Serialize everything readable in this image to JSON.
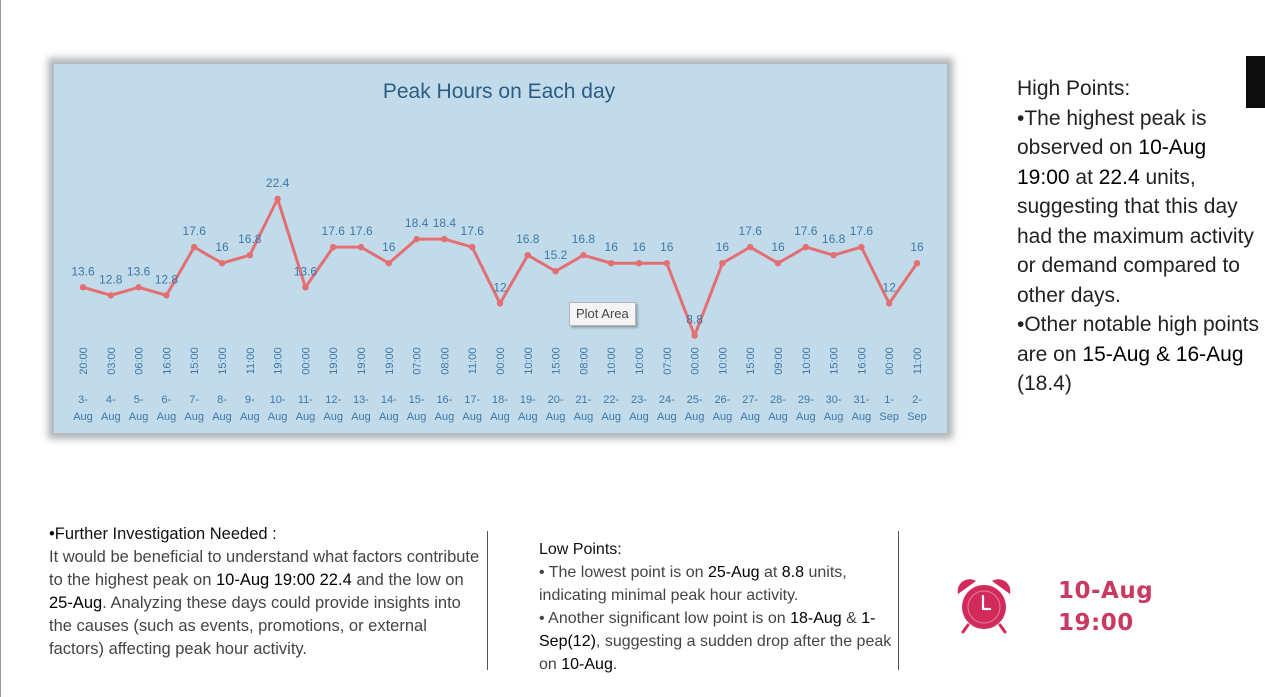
{
  "chart_data": {
    "type": "line",
    "title": "Peak Hours on Each day",
    "categories": [
      {
        "date": "3-Aug",
        "time": "20:00"
      },
      {
        "date": "4-Aug",
        "time": "03:00"
      },
      {
        "date": "5-Aug",
        "time": "06:00"
      },
      {
        "date": "6-Aug",
        "time": "16:00"
      },
      {
        "date": "7-Aug",
        "time": "15:00"
      },
      {
        "date": "8-Aug",
        "time": "15:00"
      },
      {
        "date": "9-Aug",
        "time": "11:00"
      },
      {
        "date": "10-Aug",
        "time": "19:00"
      },
      {
        "date": "11-Aug",
        "time": "00:00"
      },
      {
        "date": "12-Aug",
        "time": "19:00"
      },
      {
        "date": "13-Aug",
        "time": "19:00"
      },
      {
        "date": "14-Aug",
        "time": "19:00"
      },
      {
        "date": "15-Aug",
        "time": "07:00"
      },
      {
        "date": "16-Aug",
        "time": "08:00"
      },
      {
        "date": "17-Aug",
        "time": "11:00"
      },
      {
        "date": "18-Aug",
        "time": "00:00"
      },
      {
        "date": "19-Aug",
        "time": "10:00"
      },
      {
        "date": "20-Aug",
        "time": "15:00"
      },
      {
        "date": "21-Aug",
        "time": "08:00"
      },
      {
        "date": "22-Aug",
        "time": "10:00"
      },
      {
        "date": "23-Aug",
        "time": "10:00"
      },
      {
        "date": "24-Aug",
        "time": "07:00"
      },
      {
        "date": "25-Aug",
        "time": "00:00"
      },
      {
        "date": "26-Aug",
        "time": "10:00"
      },
      {
        "date": "27-Aug",
        "time": "15:00"
      },
      {
        "date": "28-Aug",
        "time": "09:00"
      },
      {
        "date": "29-Aug",
        "time": "10:00"
      },
      {
        "date": "30-Aug",
        "time": "15:00"
      },
      {
        "date": "31-Aug",
        "time": "16:00"
      },
      {
        "date": "1-Sep",
        "time": "00:00"
      },
      {
        "date": "2-Sep",
        "time": "11:00"
      }
    ],
    "values": [
      13.6,
      12.8,
      13.6,
      12.8,
      17.6,
      16,
      16.8,
      22.4,
      13.6,
      17.6,
      17.6,
      16,
      18.4,
      18.4,
      17.6,
      12,
      16.8,
      15.2,
      16.8,
      16,
      16,
      16,
      8.8,
      16,
      17.6,
      16,
      17.6,
      16.8,
      17.6,
      12,
      16
    ],
    "ylim": [
      0,
      30
    ],
    "grid": false,
    "legend": "none",
    "colors": {
      "line": "#e46f72",
      "background": "#c2dbea",
      "labels": "#3c78a8",
      "title": "#2c5c83"
    }
  },
  "tooltip": "Plot Area",
  "high_points": {
    "heading": "High Points:",
    "b1_pre": "•The highest peak is observed on ",
    "b1_date": "10-Aug 19:00",
    "b1_mid": " at ",
    "b1_val": "22.4",
    "b1_post": " units, suggesting that this day had the maximum activity or demand compared to other days.",
    "b2_pre": "•Other notable high points are on ",
    "b2_dates": "15-Aug & 16-Aug",
    "b2_post": " (18.4)"
  },
  "further": {
    "heading": "•Further Investigation Needed :",
    "t1": "It would be beneficial to understand what factors contribute to the highest peak on ",
    "k1": "10-Aug 19:00 22.4",
    "t2": " and the low on ",
    "k2": "25-Aug",
    "t3": ". Analyzing these days could provide insights into the causes (such as events, promotions, or external factors) affecting peak hour activity."
  },
  "low_points": {
    "heading": "Low Points:",
    "b1_pre": "• The lowest point is on ",
    "b1_date": "25-Aug",
    "b1_mid": " at ",
    "b1_val": "8.8",
    "b1_post": " units, indicating minimal peak hour activity.",
    "b2_pre": "• Another significant low point is on ",
    "b2_d1": "18-Aug",
    "b2_amp": " & ",
    "b2_d2": "1-Sep(12)",
    "b2_mid": ", suggesting a sudden drop after the peak on ",
    "b2_d3": "10-Aug",
    "b2_post": "."
  },
  "highlight": {
    "icon": "alarm-clock-icon",
    "date": "10-Aug",
    "time": "19:00",
    "color": "#c93a63",
    "icon_color": "#d22a5a"
  }
}
